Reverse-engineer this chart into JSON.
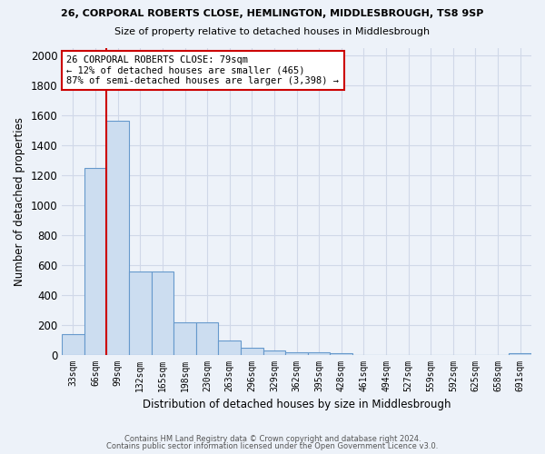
{
  "title1": "26, CORPORAL ROBERTS CLOSE, HEMLINGTON, MIDDLESBROUGH, TS8 9SP",
  "title2": "Size of property relative to detached houses in Middlesbrough",
  "xlabel": "Distribution of detached houses by size in Middlesbrough",
  "ylabel": "Number of detached properties",
  "footer1": "Contains HM Land Registry data © Crown copyright and database right 2024.",
  "footer2": "Contains public sector information licensed under the Open Government Licence v3.0.",
  "categories": [
    "33sqm",
    "66sqm",
    "99sqm",
    "132sqm",
    "165sqm",
    "198sqm",
    "230sqm",
    "263sqm",
    "296sqm",
    "329sqm",
    "362sqm",
    "395sqm",
    "428sqm",
    "461sqm",
    "494sqm",
    "527sqm",
    "559sqm",
    "592sqm",
    "625sqm",
    "658sqm",
    "691sqm"
  ],
  "values": [
    140,
    1250,
    1560,
    560,
    560,
    220,
    220,
    95,
    50,
    30,
    20,
    20,
    15,
    0,
    0,
    0,
    0,
    0,
    0,
    0,
    15
  ],
  "bar_color": "#ccddf0",
  "bar_edge_color": "#6699cc",
  "marker_color": "#cc0000",
  "annotation_text": "26 CORPORAL ROBERTS CLOSE: 79sqm\n← 12% of detached houses are smaller (465)\n87% of semi-detached houses are larger (3,398) →",
  "annotation_box_color": "#cc0000",
  "ylim": [
    0,
    2050
  ],
  "yticks": [
    0,
    200,
    400,
    600,
    800,
    1000,
    1200,
    1400,
    1600,
    1800,
    2000
  ],
  "bg_color": "#edf2f9",
  "grid_color": "#d0d8e8"
}
